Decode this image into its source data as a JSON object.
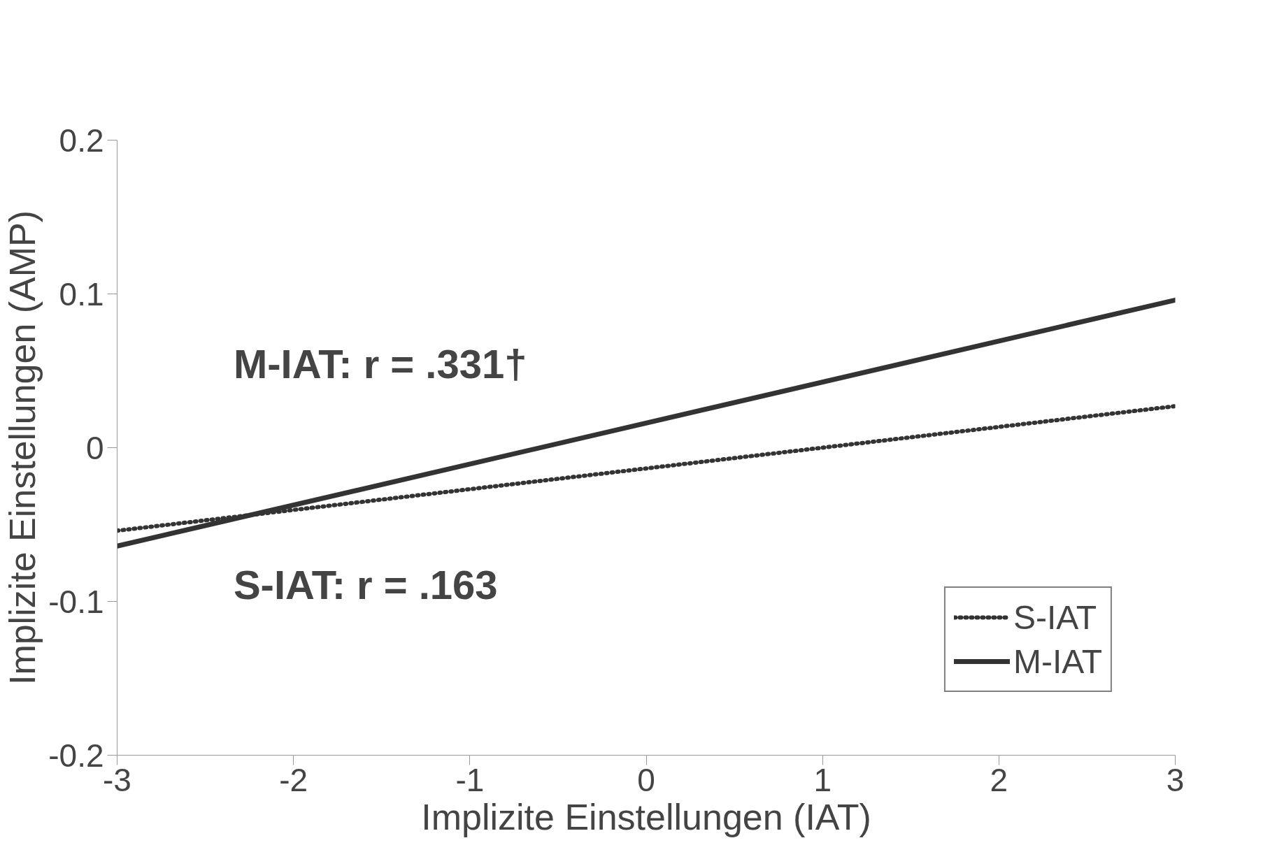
{
  "chart_data": {
    "type": "line",
    "xlabel": "Implizite Einstellungen (IAT)",
    "ylabel": "Implizite Einstellungen (AMP)",
    "xlim": [
      -3,
      3
    ],
    "xticks": [
      -3,
      -2,
      -1,
      0,
      1,
      2,
      3
    ],
    "ylim": [
      -0.2,
      0.2
    ],
    "yticks": [
      -0.2,
      -0.1,
      0,
      0.1,
      0.2
    ],
    "grid": false,
    "x": [
      -3,
      3
    ],
    "legend": "bottom right",
    "marker": "none",
    "series": [
      {
        "name": "S-IAT",
        "color": "#333333",
        "line_style": "dotted",
        "values": [
          -0.054,
          0.027
        ]
      },
      {
        "name": "M-IAT",
        "color": "#333333",
        "line_style": "solid",
        "values": [
          -0.064,
          0.096
        ]
      }
    ],
    "annotations": [
      "M-IAT: r = .331†",
      "S-IAT: r = .163"
    ]
  }
}
